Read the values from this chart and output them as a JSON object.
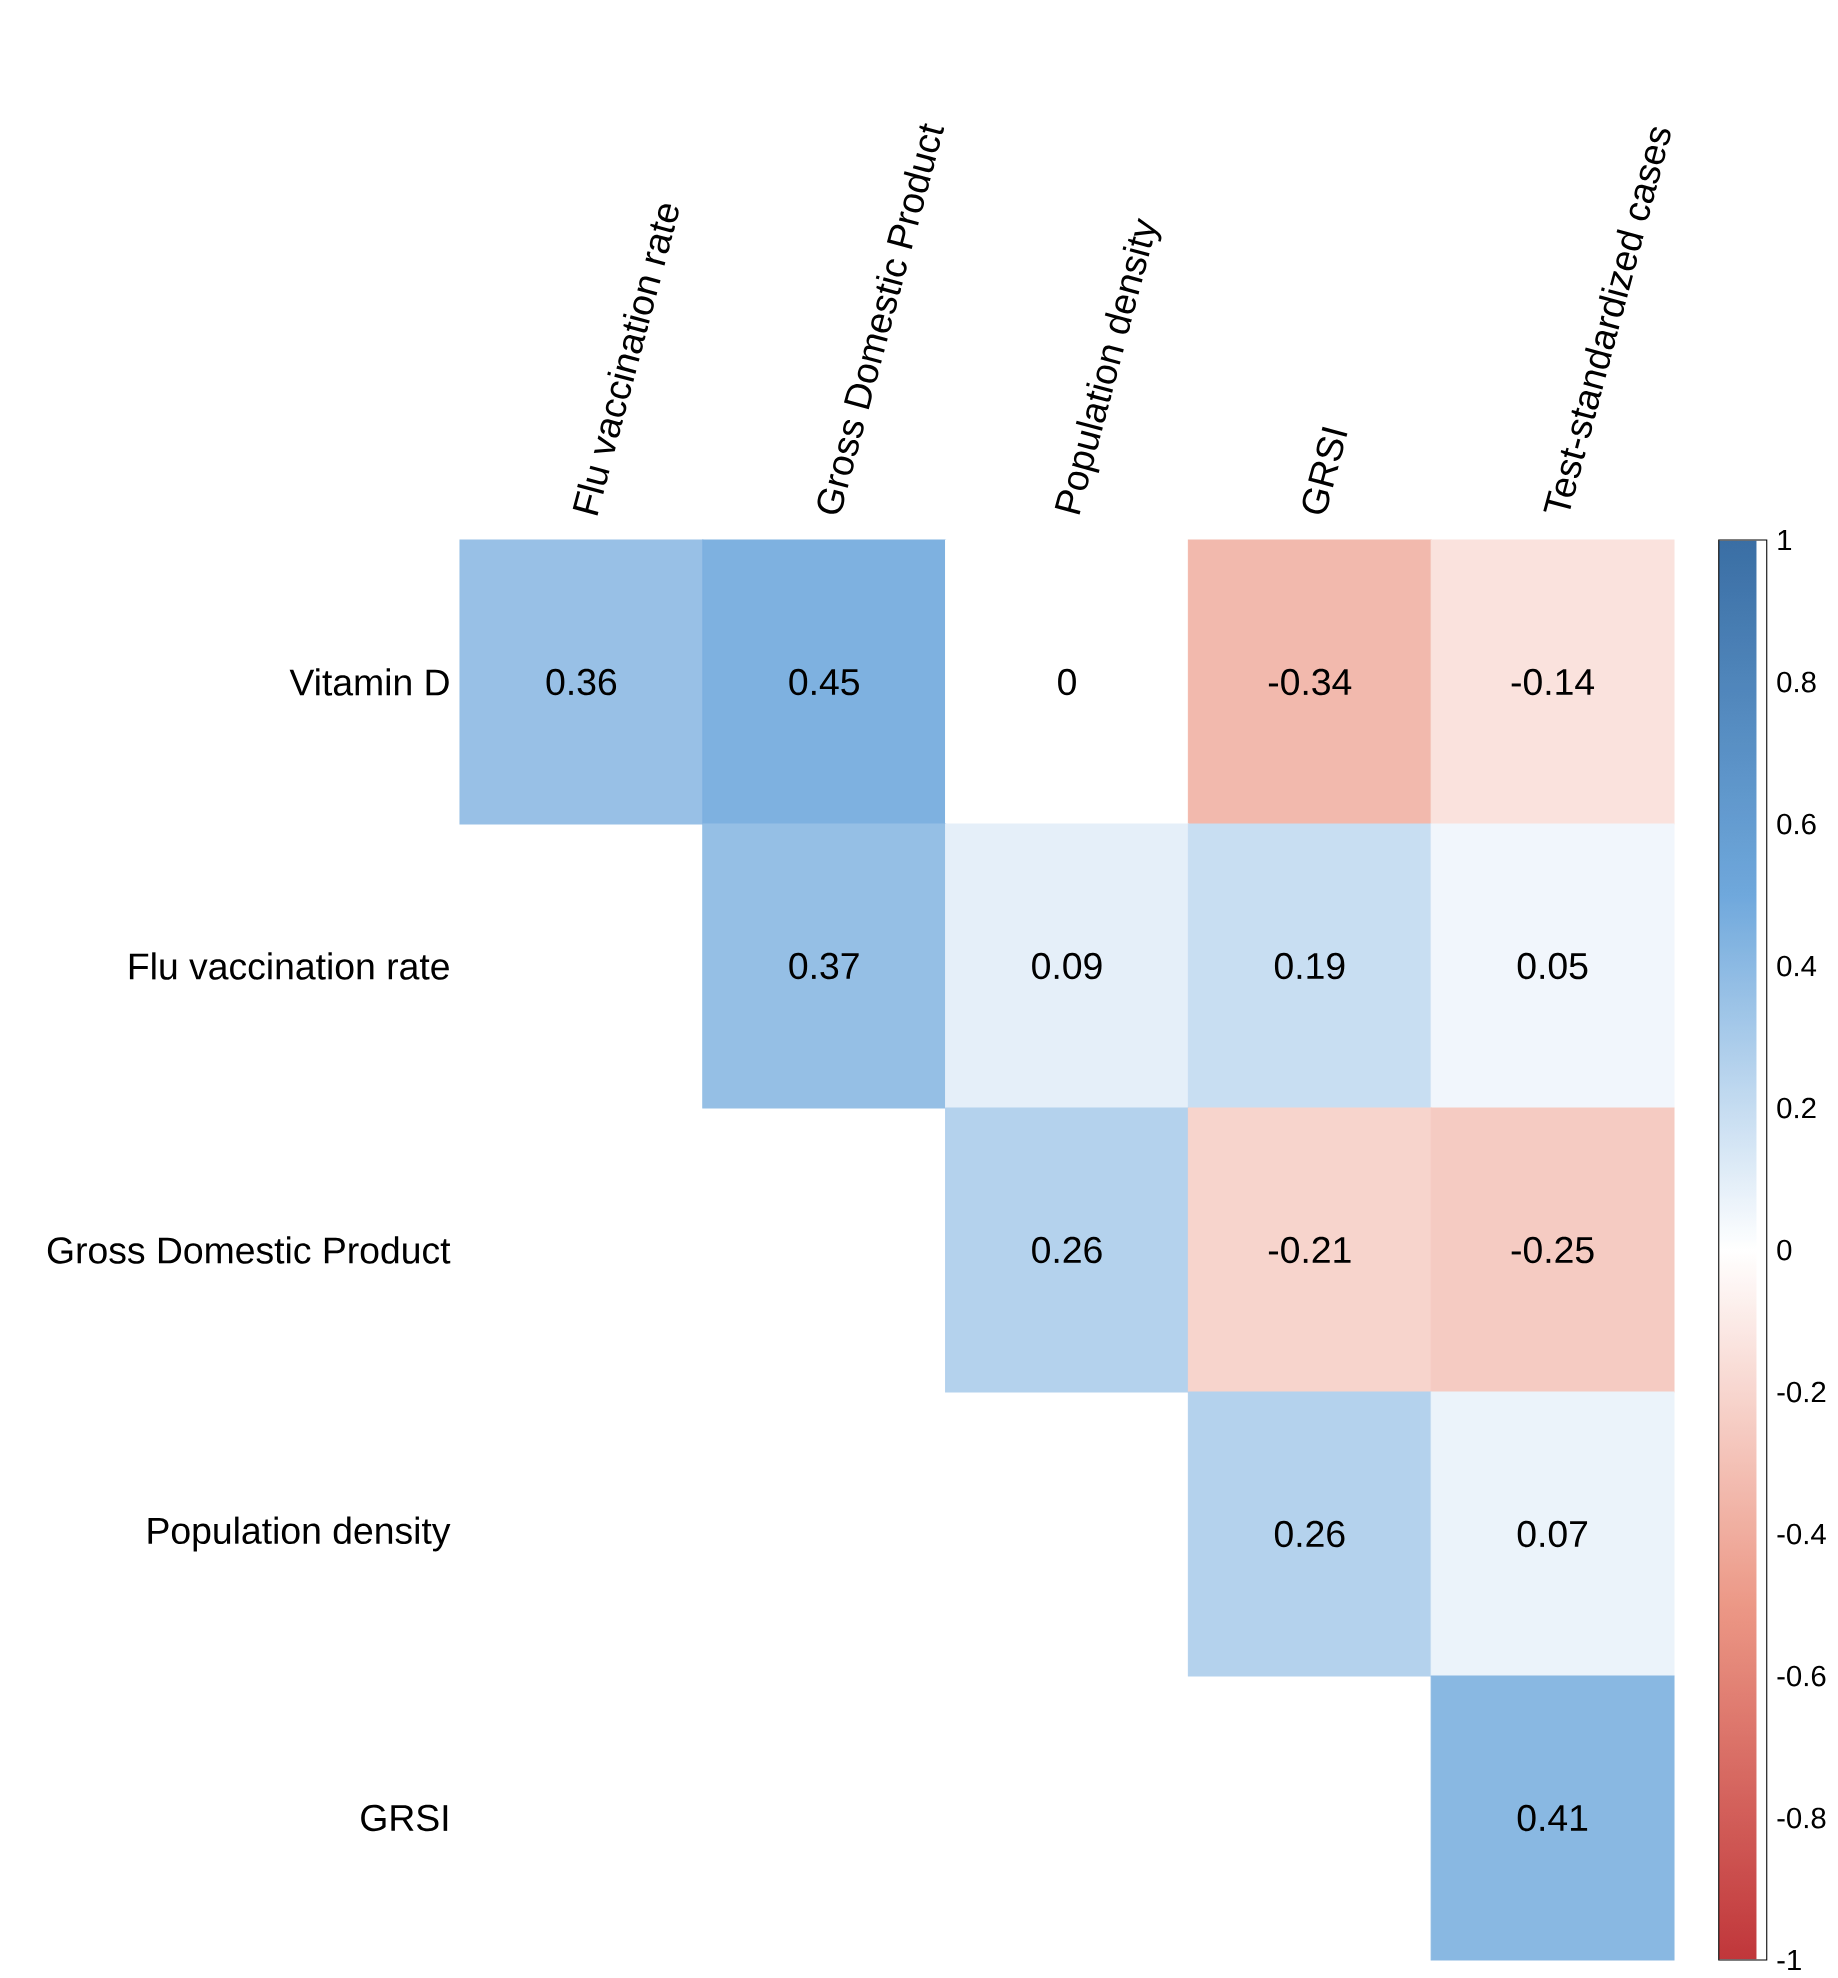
{
  "chart_data": {
    "type": "heatmap",
    "categories": [
      "Flu vaccination rate",
      "Gross Domestic Product",
      "Population density",
      "GRSI",
      "Test-standardized cases"
    ],
    "y_categories": [
      "Vitamin D",
      "Flu vaccination rate",
      "Gross Domestic Product",
      "Population density",
      "GRSI"
    ],
    "cells": [
      [
        0.36,
        0.45,
        0,
        -0.34,
        -0.14
      ],
      [
        null,
        0.37,
        0.09,
        0.19,
        0.05
      ],
      [
        null,
        null,
        0.26,
        -0.21,
        -0.25
      ],
      [
        null,
        null,
        null,
        0.26,
        0.07
      ],
      [
        null,
        null,
        null,
        null,
        0.41
      ]
    ],
    "data_labels": true,
    "clim": [
      -1,
      1
    ],
    "cticks": [
      -1,
      -0.8,
      -0.6,
      -0.4,
      -0.2,
      0,
      0.2,
      0.4,
      0.6,
      0.8,
      1
    ]
  }
}
